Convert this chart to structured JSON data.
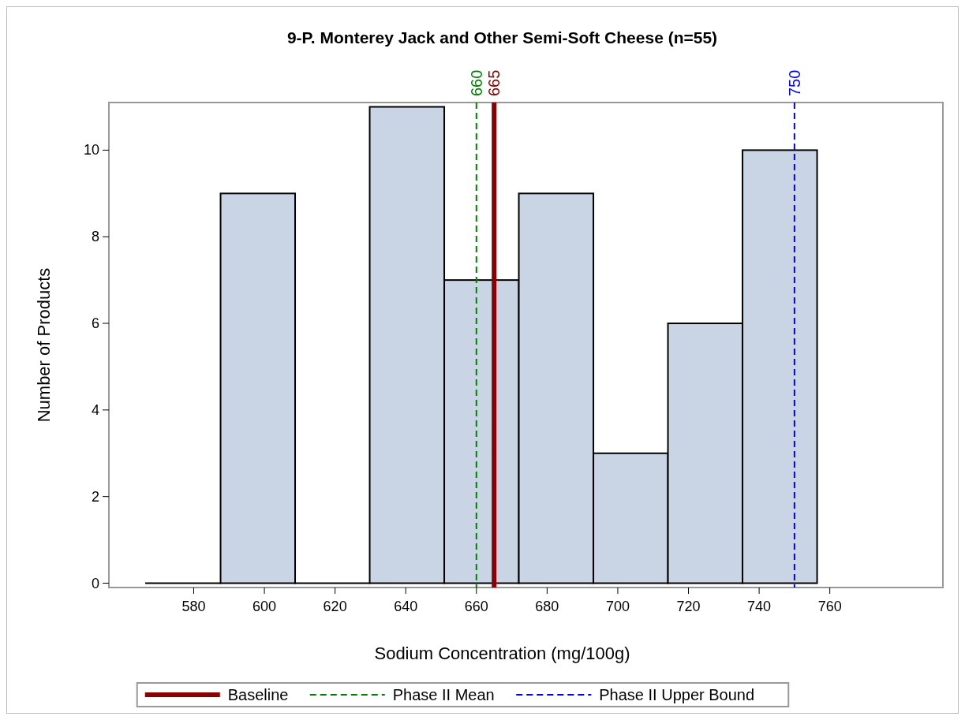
{
  "chart_data": {
    "type": "histogram",
    "title": "9-P. Monterey Jack and Other Semi-Soft Cheese (n=55)",
    "xlabel": "Sodium Concentration (mg/100g)",
    "ylabel": "Number of Products",
    "bins": [
      566.5,
      587.6,
      608.7,
      629.8,
      650.9,
      672,
      693.1,
      714.2,
      735.3,
      756.4
    ],
    "values": [
      0,
      9,
      0,
      11,
      7,
      9,
      3,
      6,
      10
    ],
    "color": "#c9d5e5",
    "xlim": [
      556,
      792
    ],
    "xticks": [
      580,
      600,
      620,
      640,
      660,
      680,
      700,
      720,
      740,
      760
    ],
    "ylim": [
      -0.1,
      11.1
    ],
    "yticks": [
      0,
      2,
      4,
      6,
      8,
      10
    ],
    "grid": false,
    "legend": "bottom",
    "annotations": [
      "665",
      "660",
      "750"
    ],
    "ref_lines": [
      {
        "axis": "x",
        "value": 665,
        "label": "Baseline",
        "color": "#8b0000",
        "line_style": "solid"
      },
      {
        "axis": "x",
        "value": 660,
        "label": "Phase II Mean",
        "color": "#008000",
        "line_style": "dashed"
      },
      {
        "axis": "x",
        "value": 750,
        "label": "Phase II Upper Bound",
        "color": "#0000ff",
        "line_style": "dashed"
      }
    ]
  }
}
